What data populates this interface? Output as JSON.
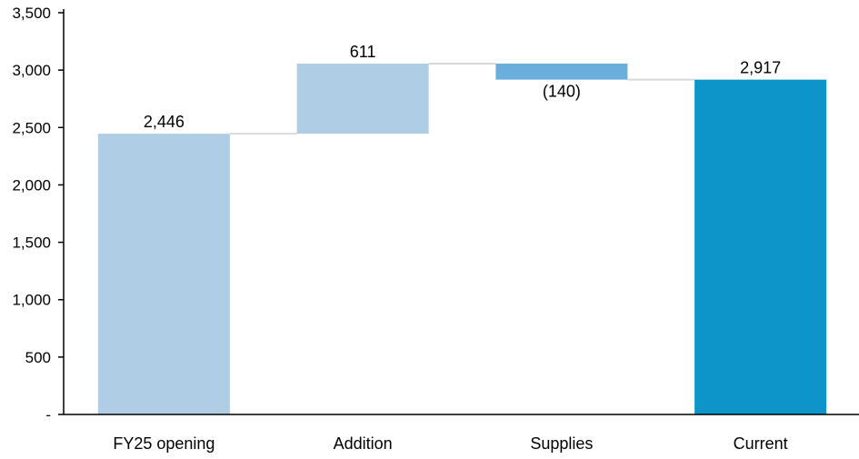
{
  "chart_data": {
    "type": "waterfall",
    "title": "",
    "xlabel": "",
    "ylabel": "",
    "ylim": [
      0,
      3500
    ],
    "y_ticks": [
      {
        "value": 0,
        "label": "-"
      },
      {
        "value": 500,
        "label": "500"
      },
      {
        "value": 1000,
        "label": "1,000"
      },
      {
        "value": 1500,
        "label": "1,500"
      },
      {
        "value": 2000,
        "label": "2,000"
      },
      {
        "value": 2500,
        "label": "2,500"
      },
      {
        "value": 3000,
        "label": "3,000"
      },
      {
        "value": 3500,
        "label": "3,500"
      }
    ],
    "grid": false,
    "legend": "none",
    "categories": [
      "FY25 opening",
      "Addition",
      "Supplies",
      "Current"
    ],
    "bars": [
      {
        "category": "FY25 opening",
        "kind": "total",
        "start": 0,
        "end": 2446,
        "value": 2446,
        "label": "2,446",
        "color": "#b0cde6"
      },
      {
        "category": "Addition",
        "kind": "increase",
        "start": 2446,
        "end": 3057,
        "value": 611,
        "label": "611",
        "color": "#b0cde6"
      },
      {
        "category": "Supplies",
        "kind": "decrease",
        "start": 3057,
        "end": 2917,
        "value": -140,
        "label": "(140)",
        "color": "#6aaedc"
      },
      {
        "category": "Current",
        "kind": "total",
        "start": 0,
        "end": 2917,
        "value": 2917,
        "label": "2,917",
        "color": "#0d94c8"
      }
    ],
    "connector_color": "#d9d9d9",
    "axis_color": "#000000"
  }
}
